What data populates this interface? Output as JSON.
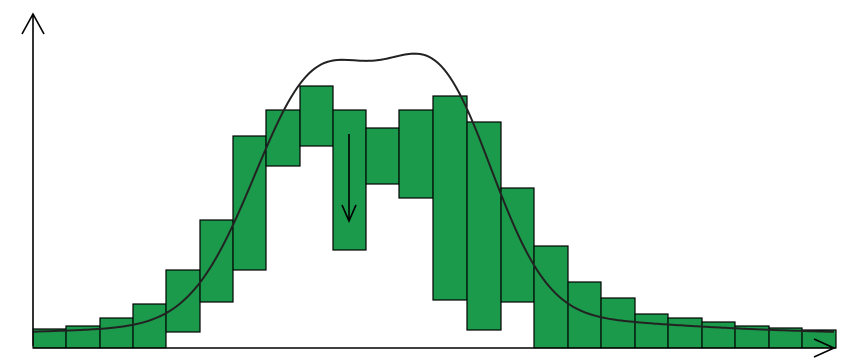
{
  "colors": {
    "bar_fill": "#1a9a4a",
    "bar_stroke": "#000000",
    "curve": "#222222",
    "axis": "#000000",
    "background": "#ffffff"
  },
  "icons": {
    "y_axis_arrow": "arrow-up-icon",
    "x_axis_arrow": "arrow-right-icon",
    "shift_marker": "arrow-down-icon"
  }
}
